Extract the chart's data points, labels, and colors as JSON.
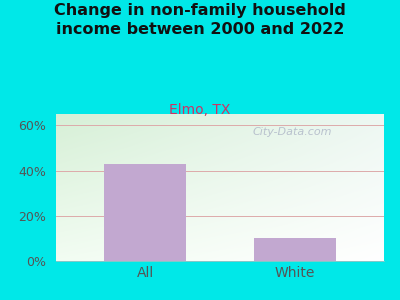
{
  "title": "Change in non-family household\nincome between 2000 and 2022",
  "subtitle": "Elmo, TX",
  "categories": [
    "All",
    "White"
  ],
  "values": [
    43,
    10
  ],
  "bar_color": "#c2a8d0",
  "title_fontsize": 11.5,
  "subtitle_fontsize": 10,
  "subtitle_color": "#cc3366",
  "title_color": "#111111",
  "tick_label_color": "#555555",
  "ytick_labels": [
    "0%",
    "20%",
    "40%",
    "60%"
  ],
  "ytick_values": [
    0,
    20,
    40,
    60
  ],
  "ylim": [
    0,
    65
  ],
  "grid_color": "#ddaaaa",
  "background_outer": "#00e8e8",
  "watermark": "City-Data.com",
  "watermark_color": "#b0b8c8"
}
